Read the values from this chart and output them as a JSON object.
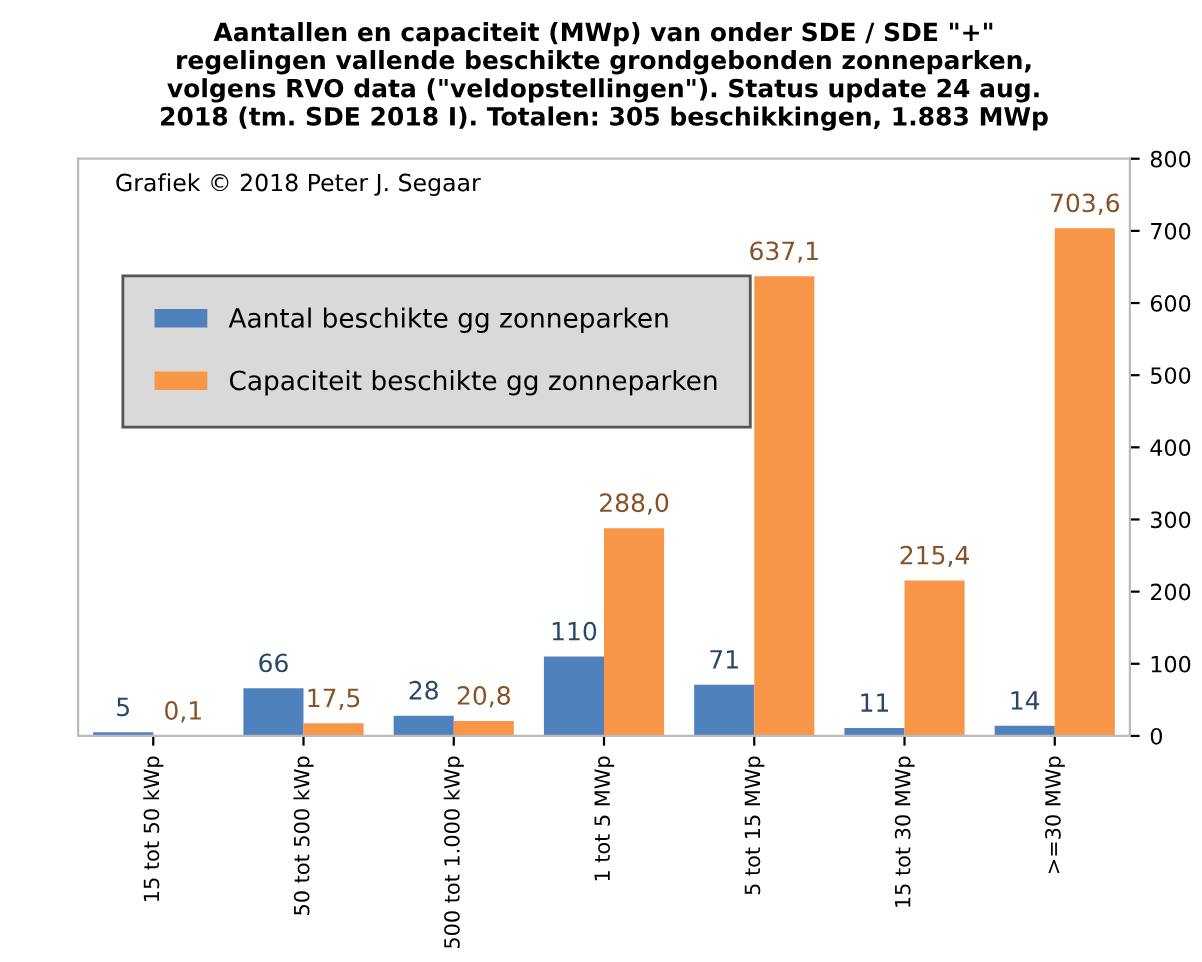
{
  "chart_data": {
    "type": "bar",
    "title": "Aantallen en capaciteit (MWp) van onder SDE / SDE \"+\"\nregelingen vallende beschikte grondgebonden zonneparken,\nvolgens RVO data (\"veldopstellingen\"). Status update 24 aug.\n2018 (tm. SDE 2018 I). Totalen: 305 beschikkingen, 1.883 MWp",
    "categories": [
      "15 tot 50 kWp",
      "50 tot 500 kWp",
      "500 tot 1.000 kWp",
      "1 tot 5 MWp",
      "5 tot 15 MWp",
      "15 tot 30 MWp",
      ">=30 MWp"
    ],
    "series": [
      {
        "name": "Aantal beschikte gg zonneparken",
        "color": "#4f81bd",
        "values": [
          5,
          66,
          28,
          110,
          71,
          11,
          14
        ],
        "value_labels": [
          "5",
          "66",
          "28",
          "110",
          "71",
          "11",
          "14"
        ]
      },
      {
        "name": "Capaciteit beschikte gg zonneparken",
        "color": "#f79646",
        "values": [
          0.1,
          17.5,
          20.8,
          288.0,
          637.1,
          215.4,
          703.6
        ],
        "value_labels": [
          "0,1",
          "17,5",
          "20,8",
          "288,0",
          "637,1",
          "215,4",
          "703,6"
        ]
      }
    ],
    "ylim": [
      0,
      800
    ],
    "yticks": [
      0,
      100,
      200,
      300,
      400,
      500,
      600,
      700,
      800
    ],
    "grid": false,
    "legend": "top left",
    "annotations": [
      "Grafiek © 2018 Peter J. Segaar"
    ]
  }
}
